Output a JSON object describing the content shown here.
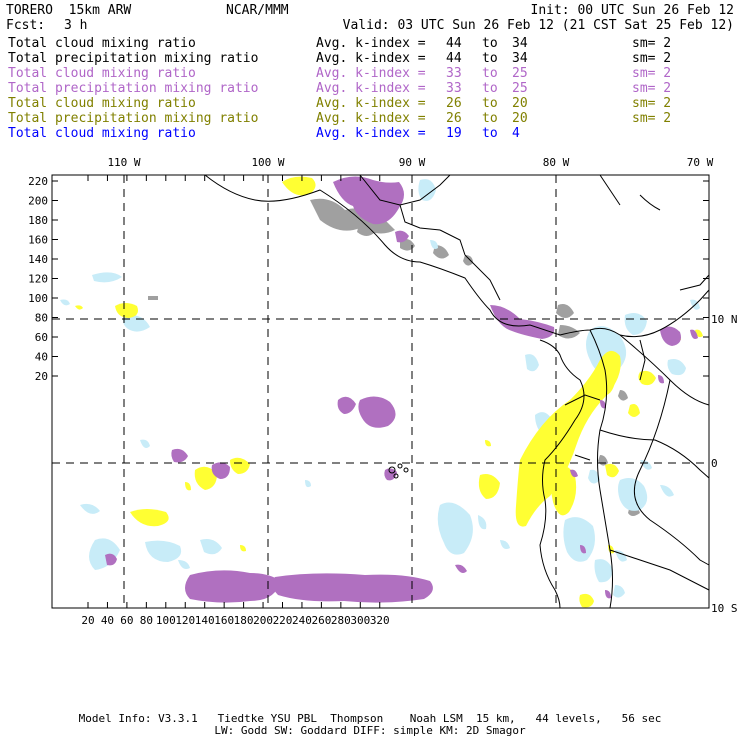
{
  "header": {
    "model": "TORERO  15km ARW",
    "org": "NCAR/MMM",
    "init": "Init: 00 UTC Sun 26 Feb 12",
    "fcst_label": "Fcst:",
    "fcst_value": "3 h",
    "valid": "Valid: 03 UTC Sun 26 Feb 12 (21 CST Sat 25 Feb 12)"
  },
  "legend": [
    {
      "field": "Total cloud mixing ratio",
      "kindex_label": "Avg. k-index =",
      "k_from": "44",
      "to": "to",
      "k_to": "34",
      "sm": "sm= 2",
      "color": "#000000"
    },
    {
      "field": "Total precipitation mixing ratio",
      "kindex_label": "Avg. k-index =",
      "k_from": "44",
      "to": "to",
      "k_to": "34",
      "sm": "sm= 2",
      "color": "#000000"
    },
    {
      "field": "Total cloud mixing ratio",
      "kindex_label": "Avg. k-index =",
      "k_from": "33",
      "to": "to",
      "k_to": "25",
      "sm": "sm= 2",
      "color": "#b066c8"
    },
    {
      "field": "Total precipitation mixing ratio",
      "kindex_label": "Avg. k-index =",
      "k_from": "33",
      "to": "to",
      "k_to": "25",
      "sm": "sm= 2",
      "color": "#b066c8"
    },
    {
      "field": "Total cloud mixing ratio",
      "kindex_label": "Avg. k-index =",
      "k_from": "26",
      "to": "to",
      "k_to": "20",
      "sm": "sm= 2",
      "color": "#808000"
    },
    {
      "field": "Total precipitation mixing ratio",
      "kindex_label": "Avg. k-index =",
      "k_from": "26",
      "to": "to",
      "k_to": "20",
      "sm": "sm= 2",
      "color": "#808000"
    },
    {
      "field": "Total cloud mixing ratio",
      "kindex_label": "Avg. k-index =",
      "k_from": "19",
      "to": "to",
      "k_to": "4",
      "sm": "",
      "color": "#0000ff"
    }
  ],
  "map": {
    "lon_labels": [
      "110 W",
      "100 W",
      "90 W",
      "80 W",
      "70 W"
    ],
    "lat_labels": [
      "10 N",
      "0",
      "10 S"
    ],
    "x_ticks": [
      "20",
      "40",
      "60",
      "80",
      "100",
      "120",
      "140",
      "160",
      "180",
      "200",
      "220",
      "240",
      "260",
      "280",
      "300",
      "320"
    ],
    "y_ticks": [
      "220",
      "200",
      "180",
      "160",
      "140",
      "120",
      "100",
      "80",
      "60",
      "40",
      "20"
    ],
    "colors": {
      "gray": "#a0a0a0",
      "purple": "#b070c0",
      "yellow": "#ffff33",
      "lightblue": "#c8ecf8",
      "coast": "#000000"
    }
  },
  "footer": {
    "line1": "Model Info: V3.3.1   Tiedtke YSU PBL  Thompson    Noah LSM  15 km,   44 levels,   56 sec",
    "line2": "LW: Godd SW: Goddard DIFF: simple KM: 2D Smagor"
  }
}
